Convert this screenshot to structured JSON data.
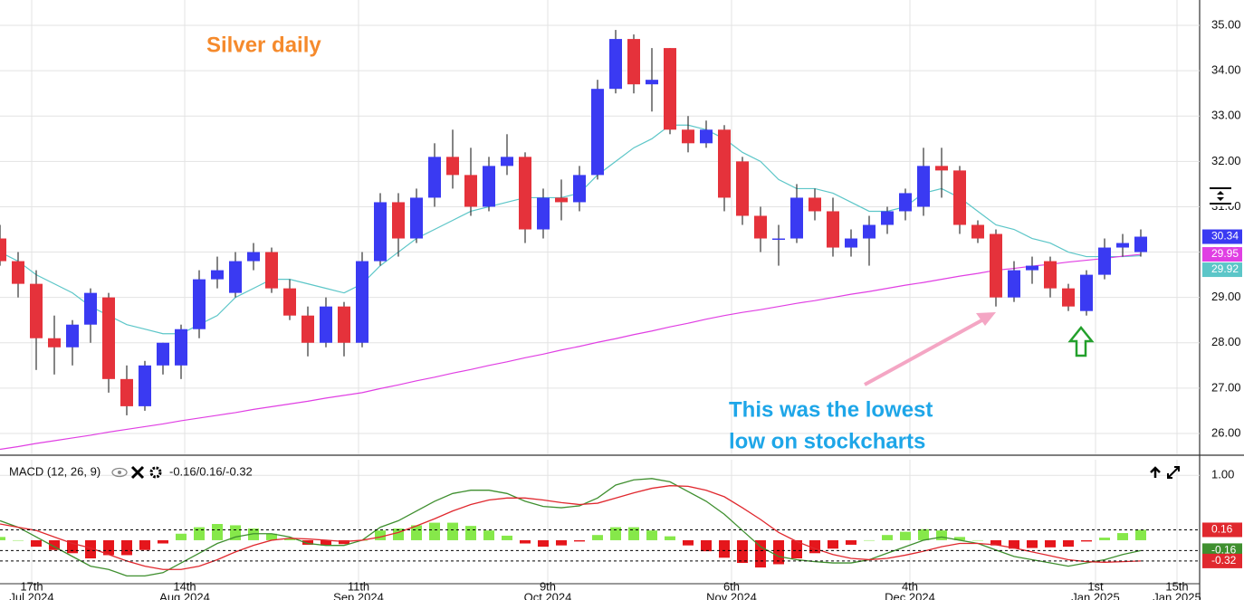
{
  "chart_data": [
    {
      "type": "candlestick",
      "title": "Silver daily",
      "annotations": [
        "This was the lowest",
        "low on stockcharts"
      ],
      "x": [
        0,
        2,
        4,
        6,
        8,
        10,
        12,
        14,
        16,
        18,
        20,
        22,
        24,
        26,
        28,
        30,
        32,
        34,
        36,
        38,
        40,
        42,
        44,
        46,
        48,
        50,
        52,
        54,
        56,
        58,
        60,
        62,
        64,
        66,
        68,
        70,
        72,
        74,
        76,
        78,
        80,
        82,
        84,
        86,
        88,
        90,
        92,
        94,
        96,
        98,
        100,
        102,
        104,
        106,
        108,
        110,
        112,
        114,
        116,
        118,
        120,
        122,
        124,
        126
      ],
      "open": [
        30.3,
        29.8,
        29.3,
        28.1,
        27.9,
        28.4,
        29.0,
        27.2,
        26.6,
        27.5,
        27.5,
        28.3,
        29.4,
        29.1,
        29.8,
        30.0,
        29.2,
        28.6,
        28.0,
        28.8,
        28.0,
        29.8,
        31.1,
        30.3,
        31.2,
        32.1,
        31.7,
        31.0,
        31.9,
        32.1,
        30.5,
        31.2,
        31.1,
        31.7,
        33.6,
        34.7,
        33.7,
        34.5,
        32.7,
        32.4,
        32.7,
        32.0,
        30.8,
        30.3,
        30.3,
        31.2,
        30.9,
        30.1,
        30.3,
        30.6,
        30.9,
        31.0,
        31.9,
        31.8,
        30.6,
        30.4,
        29.0,
        29.6,
        29.8,
        29.2,
        28.7,
        29.5,
        30.1,
        30.0
      ],
      "high": [
        30.6,
        30.0,
        29.6,
        28.6,
        28.5,
        29.2,
        29.1,
        27.5,
        27.6,
        28.0,
        28.4,
        29.6,
        29.9,
        30.0,
        30.2,
        30.1,
        29.4,
        28.8,
        29.0,
        28.9,
        30.0,
        31.3,
        31.3,
        31.4,
        32.4,
        32.7,
        32.3,
        32.1,
        32.6,
        32.2,
        31.4,
        31.6,
        31.9,
        33.8,
        34.9,
        34.8,
        34.5,
        34.5,
        33.0,
        32.9,
        32.8,
        32.1,
        31.0,
        30.6,
        31.5,
        31.4,
        31.2,
        30.5,
        30.8,
        31.0,
        31.4,
        32.3,
        32.3,
        31.9,
        30.7,
        30.5,
        29.8,
        29.9,
        29.9,
        29.3,
        29.6,
        30.3,
        30.4,
        30.5
      ],
      "low": [
        29.7,
        29.0,
        27.4,
        27.3,
        27.5,
        28.0,
        26.9,
        26.4,
        26.5,
        27.3,
        27.2,
        28.1,
        29.2,
        29.0,
        29.6,
        29.1,
        28.5,
        27.7,
        27.9,
        27.7,
        27.9,
        29.7,
        29.9,
        30.2,
        31.0,
        31.4,
        30.8,
        30.9,
        31.7,
        30.2,
        30.3,
        30.7,
        30.9,
        31.6,
        33.5,
        33.5,
        33.1,
        32.6,
        32.2,
        32.3,
        30.9,
        30.6,
        30.0,
        29.7,
        30.2,
        30.7,
        29.9,
        29.9,
        29.7,
        30.4,
        30.7,
        30.8,
        31.2,
        30.4,
        30.2,
        28.8,
        28.9,
        29.3,
        29.0,
        28.7,
        28.6,
        29.4,
        29.9,
        29.9
      ],
      "close": [
        29.8,
        29.3,
        28.1,
        27.9,
        28.4,
        29.1,
        27.2,
        26.6,
        27.5,
        28.0,
        28.3,
        29.4,
        29.6,
        29.8,
        30.0,
        29.2,
        28.6,
        28.0,
        28.8,
        28.0,
        29.8,
        31.1,
        30.3,
        31.2,
        32.1,
        31.7,
        31.0,
        31.9,
        32.1,
        30.5,
        31.2,
        31.1,
        31.7,
        33.6,
        34.7,
        33.7,
        33.8,
        32.7,
        32.4,
        32.7,
        31.2,
        30.8,
        30.3,
        30.3,
        31.2,
        30.9,
        30.1,
        30.3,
        30.6,
        30.9,
        31.3,
        31.9,
        31.8,
        30.6,
        30.3,
        29.0,
        29.6,
        29.7,
        29.2,
        28.8,
        29.5,
        30.1,
        30.2,
        30.34
      ],
      "up_color": "#3a3af2",
      "down_color": "#e5323b",
      "series": [
        {
          "color": "#5cc6c8",
          "values": [
            30.0,
            29.8,
            29.5,
            29.3,
            29.1,
            28.8,
            28.6,
            28.4,
            28.3,
            28.2,
            28.2,
            28.4,
            28.6,
            29.0,
            29.2,
            29.4,
            29.4,
            29.3,
            29.2,
            29.1,
            29.3,
            29.7,
            30.0,
            30.3,
            30.5,
            30.7,
            30.9,
            31.0,
            31.1,
            31.2,
            31.2,
            31.2,
            31.3,
            31.7,
            32.0,
            32.3,
            32.5,
            32.8,
            32.8,
            32.7,
            32.5,
            32.2,
            32.0,
            31.6,
            31.4,
            31.4,
            31.3,
            31.1,
            30.9,
            30.9,
            31.0,
            31.3,
            31.4,
            31.2,
            30.9,
            30.6,
            30.5,
            30.3,
            30.2,
            30.0,
            29.9,
            29.9,
            29.9,
            29.92
          ]
        },
        {
          "color": "#e03fe3",
          "values": [
            25.65,
            25.71,
            25.78,
            25.84,
            25.9,
            25.96,
            26.03,
            26.09,
            26.15,
            26.21,
            26.28,
            26.34,
            26.4,
            26.46,
            26.53,
            26.59,
            26.65,
            26.71,
            26.78,
            26.84,
            26.9,
            26.99,
            27.07,
            27.16,
            27.24,
            27.33,
            27.41,
            27.5,
            27.58,
            27.67,
            27.75,
            27.84,
            27.92,
            28.01,
            28.09,
            28.18,
            28.26,
            28.35,
            28.43,
            28.52,
            28.6,
            28.67,
            28.73,
            28.8,
            28.87,
            28.93,
            29.0,
            29.07,
            29.13,
            29.2,
            29.27,
            29.33,
            29.4,
            29.47,
            29.53,
            29.6,
            29.64,
            29.69,
            29.73,
            29.78,
            29.82,
            29.86,
            29.91,
            29.95
          ]
        }
      ],
      "xlim": [
        0,
        132.5
      ],
      "ylim": [
        25.54,
        35.56
      ],
      "xticks": [
        3.5,
        20.4,
        39.6,
        60.5,
        80.8,
        100.5,
        121,
        130
      ],
      "yticks": [
        {
          "value": 26,
          "label": "26.00"
        },
        {
          "value": 27,
          "label": "27.00"
        },
        {
          "value": 28,
          "label": "28.00"
        },
        {
          "value": 29,
          "label": "29.00"
        },
        {
          "value": 30,
          "label": "30.00"
        },
        {
          "value": 31,
          "label": "31.00"
        },
        {
          "value": 32,
          "label": "32.00"
        },
        {
          "value": 33,
          "label": "33.00"
        },
        {
          "value": 34,
          "label": "34.00"
        },
        {
          "value": 35,
          "label": "35.00"
        }
      ],
      "grid": true
    },
    {
      "type": "macd",
      "title": "MACD (12, 26, 9)",
      "readout": "-0.16/0.16/-0.32",
      "x": [
        0,
        2,
        4,
        6,
        8,
        10,
        12,
        14,
        16,
        18,
        20,
        22,
        24,
        26,
        28,
        30,
        32,
        34,
        36,
        38,
        40,
        42,
        44,
        46,
        48,
        50,
        52,
        54,
        56,
        58,
        60,
        62,
        64,
        66,
        68,
        70,
        72,
        74,
        76,
        78,
        80,
        82,
        84,
        86,
        88,
        90,
        92,
        94,
        96,
        98,
        100,
        102,
        104,
        106,
        108,
        110,
        112,
        114,
        116,
        118,
        120,
        122,
        124,
        126
      ],
      "series": [
        {
          "color": "#3f8f2f",
          "values": [
            0.3,
            0.2,
            0.05,
            -0.1,
            -0.25,
            -0.4,
            -0.45,
            -0.55,
            -0.55,
            -0.5,
            -0.35,
            -0.2,
            -0.05,
            0.05,
            0.1,
            0.1,
            0.05,
            -0.05,
            -0.08,
            -0.08,
            0.0,
            0.2,
            0.3,
            0.45,
            0.6,
            0.72,
            0.77,
            0.77,
            0.72,
            0.6,
            0.52,
            0.5,
            0.53,
            0.65,
            0.85,
            0.93,
            0.95,
            0.9,
            0.75,
            0.6,
            0.4,
            0.15,
            -0.1,
            -0.25,
            -0.3,
            -0.33,
            -0.35,
            -0.35,
            -0.3,
            -0.2,
            -0.1,
            0.0,
            0.05,
            0.0,
            -0.05,
            -0.15,
            -0.25,
            -0.3,
            -0.35,
            -0.4,
            -0.35,
            -0.3,
            -0.22,
            -0.16
          ]
        },
        {
          "color": "#e0282e",
          "values": [
            0.25,
            0.2,
            0.15,
            0.05,
            -0.05,
            -0.12,
            -0.22,
            -0.32,
            -0.4,
            -0.45,
            -0.45,
            -0.4,
            -0.3,
            -0.18,
            -0.08,
            0.0,
            0.03,
            0.02,
            0.0,
            -0.02,
            0.0,
            0.05,
            0.12,
            0.22,
            0.33,
            0.45,
            0.55,
            0.62,
            0.65,
            0.65,
            0.62,
            0.58,
            0.55,
            0.57,
            0.65,
            0.73,
            0.8,
            0.84,
            0.83,
            0.77,
            0.67,
            0.5,
            0.32,
            0.12,
            -0.02,
            -0.13,
            -0.22,
            -0.28,
            -0.3,
            -0.28,
            -0.23,
            -0.17,
            -0.1,
            -0.05,
            -0.05,
            -0.07,
            -0.12,
            -0.18,
            -0.24,
            -0.3,
            -0.33,
            -0.34,
            -0.33,
            -0.32
          ]
        }
      ],
      "histogram": [
        0.05,
        0.0,
        -0.1,
        -0.15,
        -0.2,
        -0.28,
        -0.23,
        -0.23,
        -0.15,
        -0.05,
        0.1,
        0.2,
        0.25,
        0.23,
        0.18,
        0.1,
        0.02,
        -0.07,
        -0.08,
        -0.06,
        0.0,
        0.15,
        0.18,
        0.23,
        0.27,
        0.27,
        0.22,
        0.15,
        0.07,
        -0.05,
        -0.1,
        -0.08,
        -0.02,
        0.08,
        0.2,
        0.2,
        0.15,
        0.06,
        -0.08,
        -0.17,
        -0.27,
        -0.35,
        -0.42,
        -0.37,
        -0.28,
        -0.2,
        -0.13,
        -0.07,
        0.0,
        0.08,
        0.13,
        0.17,
        0.15,
        0.05,
        0.0,
        -0.08,
        -0.13,
        -0.12,
        -0.11,
        -0.1,
        -0.02,
        0.04,
        0.11,
        0.16
      ],
      "hist_up_color": "#86e84a",
      "hist_down_color": "#e5161c",
      "xlim": [
        0,
        132.5
      ],
      "ylim": [
        -0.67,
        1.24
      ],
      "xticks": [
        {
          "value": 3.5,
          "label": "17th",
          "sublabel": "Jul 2024"
        },
        {
          "value": 20.4,
          "label": "14th",
          "sublabel": "Aug 2024"
        },
        {
          "value": 39.6,
          "label": "11th",
          "sublabel": "Sep 2024"
        },
        {
          "value": 60.5,
          "label": "9th",
          "sublabel": "Oct 2024"
        },
        {
          "value": 80.8,
          "label": "6th",
          "sublabel": "Nov 2024"
        },
        {
          "value": 100.5,
          "label": "4th",
          "sublabel": "Dec 2024"
        },
        {
          "value": 121,
          "label": "1st",
          "sublabel": "Jan 2025"
        },
        {
          "value": 130,
          "label": "15th",
          "sublabel": "Jan 2025"
        }
      ],
      "yticks": [
        {
          "value": 1,
          "label": "1.00"
        }
      ],
      "grid": true
    }
  ]
}
